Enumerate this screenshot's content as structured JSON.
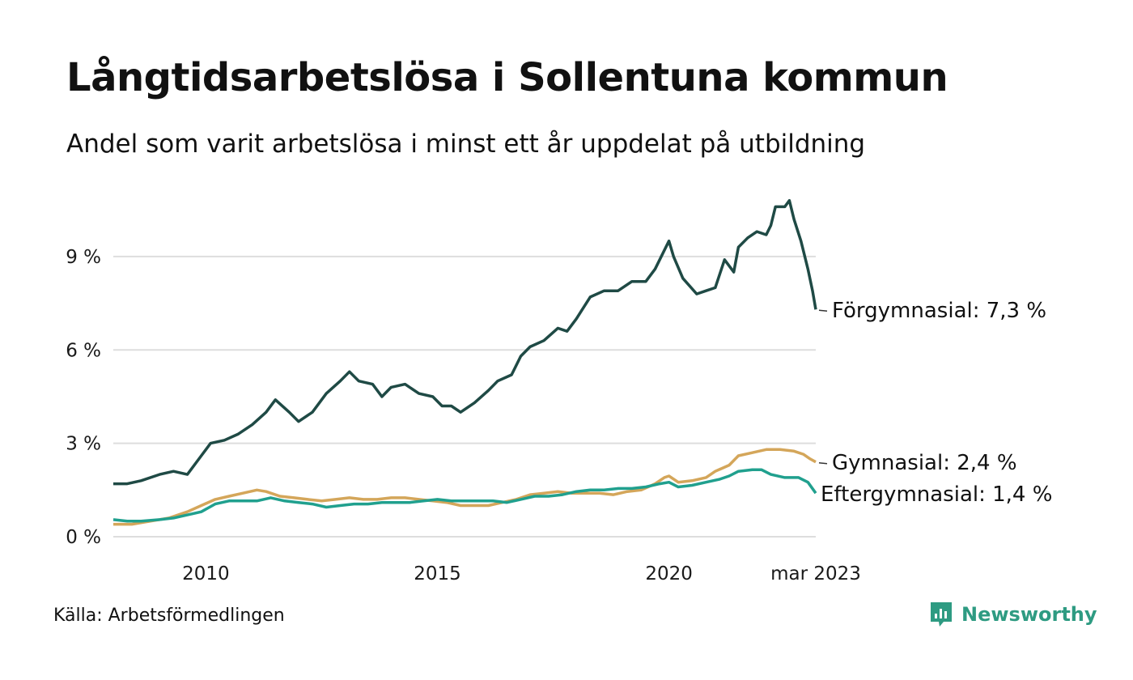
{
  "title": "Långtidsarbetslösa i Sollentuna kommun",
  "subtitle": "Andel som varit arbetslösa i minst ett år uppdelat på utbildning",
  "source": "Källa: Arbetsförmedlingen",
  "brand": {
    "name": "Newsworthy",
    "icon": "newsworthy-logo-icon",
    "color": "#2e9b82"
  },
  "chart_data": {
    "type": "line",
    "x_ticks": [
      {
        "label": "2010",
        "x": 2010.0
      },
      {
        "label": "2015",
        "x": 2015.0
      },
      {
        "label": "2020",
        "x": 2020.0
      },
      {
        "label": "mar 2023",
        "x": 2023.17
      }
    ],
    "y_ticks": [
      {
        "label": "0 %",
        "value": 0
      },
      {
        "label": "3 %",
        "value": 3
      },
      {
        "label": "6 %",
        "value": 6
      },
      {
        "label": "9 %",
        "value": 9
      }
    ],
    "xlim": [
      2008.0,
      2023.17
    ],
    "ylim": [
      0,
      11
    ],
    "grid": "horizontal",
    "series": [
      {
        "name": "Förgymnasial",
        "end_label": "Förgymnasial: 7,3 %",
        "color": "#1f4a45",
        "points": [
          [
            2008.0,
            1.7
          ],
          [
            2008.3,
            1.7
          ],
          [
            2008.6,
            1.8
          ],
          [
            2009.0,
            2.0
          ],
          [
            2009.3,
            2.1
          ],
          [
            2009.6,
            2.0
          ],
          [
            2009.9,
            2.6
          ],
          [
            2010.1,
            3.0
          ],
          [
            2010.4,
            3.1
          ],
          [
            2010.7,
            3.3
          ],
          [
            2011.0,
            3.6
          ],
          [
            2011.3,
            4.0
          ],
          [
            2011.5,
            4.4
          ],
          [
            2011.8,
            4.0
          ],
          [
            2012.0,
            3.7
          ],
          [
            2012.3,
            4.0
          ],
          [
            2012.6,
            4.6
          ],
          [
            2012.9,
            5.0
          ],
          [
            2013.1,
            5.3
          ],
          [
            2013.3,
            5.0
          ],
          [
            2013.6,
            4.9
          ],
          [
            2013.8,
            4.5
          ],
          [
            2014.0,
            4.8
          ],
          [
            2014.3,
            4.9
          ],
          [
            2014.6,
            4.6
          ],
          [
            2014.9,
            4.5
          ],
          [
            2015.1,
            4.2
          ],
          [
            2015.3,
            4.2
          ],
          [
            2015.5,
            4.0
          ],
          [
            2015.8,
            4.3
          ],
          [
            2016.1,
            4.7
          ],
          [
            2016.3,
            5.0
          ],
          [
            2016.6,
            5.2
          ],
          [
            2016.8,
            5.8
          ],
          [
            2017.0,
            6.1
          ],
          [
            2017.3,
            6.3
          ],
          [
            2017.6,
            6.7
          ],
          [
            2017.8,
            6.6
          ],
          [
            2018.0,
            7.0
          ],
          [
            2018.3,
            7.7
          ],
          [
            2018.6,
            7.9
          ],
          [
            2018.9,
            7.9
          ],
          [
            2019.2,
            8.2
          ],
          [
            2019.5,
            8.2
          ],
          [
            2019.7,
            8.6
          ],
          [
            2019.9,
            9.2
          ],
          [
            2020.0,
            9.5
          ],
          [
            2020.1,
            9.0
          ],
          [
            2020.3,
            8.3
          ],
          [
            2020.6,
            7.8
          ],
          [
            2020.8,
            7.9
          ],
          [
            2021.0,
            8.0
          ],
          [
            2021.2,
            8.9
          ],
          [
            2021.4,
            8.5
          ],
          [
            2021.5,
            9.3
          ],
          [
            2021.7,
            9.6
          ],
          [
            2021.9,
            9.8
          ],
          [
            2022.1,
            9.7
          ],
          [
            2022.2,
            10.0
          ],
          [
            2022.3,
            10.6
          ],
          [
            2022.5,
            10.6
          ],
          [
            2022.6,
            10.8
          ],
          [
            2022.7,
            10.2
          ],
          [
            2022.85,
            9.5
          ],
          [
            2023.0,
            8.6
          ],
          [
            2023.1,
            7.9
          ],
          [
            2023.17,
            7.3
          ]
        ]
      },
      {
        "name": "Gymnasial",
        "end_label": "Gymnasial: 2,4 %",
        "color": "#d4a65a",
        "points": [
          [
            2008.0,
            0.4
          ],
          [
            2008.4,
            0.4
          ],
          [
            2008.8,
            0.5
          ],
          [
            2009.2,
            0.6
          ],
          [
            2009.6,
            0.8
          ],
          [
            2009.9,
            1.0
          ],
          [
            2010.2,
            1.2
          ],
          [
            2010.5,
            1.3
          ],
          [
            2010.8,
            1.4
          ],
          [
            2011.1,
            1.5
          ],
          [
            2011.3,
            1.45
          ],
          [
            2011.6,
            1.3
          ],
          [
            2011.9,
            1.25
          ],
          [
            2012.2,
            1.2
          ],
          [
            2012.5,
            1.15
          ],
          [
            2012.8,
            1.2
          ],
          [
            2013.1,
            1.25
          ],
          [
            2013.4,
            1.2
          ],
          [
            2013.7,
            1.2
          ],
          [
            2014.0,
            1.25
          ],
          [
            2014.3,
            1.25
          ],
          [
            2014.6,
            1.2
          ],
          [
            2014.9,
            1.15
          ],
          [
            2015.2,
            1.1
          ],
          [
            2015.5,
            1.0
          ],
          [
            2015.8,
            1.0
          ],
          [
            2016.1,
            1.0
          ],
          [
            2016.4,
            1.1
          ],
          [
            2016.7,
            1.2
          ],
          [
            2017.0,
            1.35
          ],
          [
            2017.3,
            1.4
          ],
          [
            2017.6,
            1.45
          ],
          [
            2017.9,
            1.4
          ],
          [
            2018.2,
            1.4
          ],
          [
            2018.5,
            1.4
          ],
          [
            2018.8,
            1.35
          ],
          [
            2019.1,
            1.45
          ],
          [
            2019.4,
            1.5
          ],
          [
            2019.7,
            1.7
          ],
          [
            2019.9,
            1.9
          ],
          [
            2020.0,
            1.95
          ],
          [
            2020.2,
            1.75
          ],
          [
            2020.5,
            1.8
          ],
          [
            2020.8,
            1.9
          ],
          [
            2021.0,
            2.1
          ],
          [
            2021.3,
            2.3
          ],
          [
            2021.5,
            2.6
          ],
          [
            2021.8,
            2.7
          ],
          [
            2022.1,
            2.8
          ],
          [
            2022.4,
            2.8
          ],
          [
            2022.7,
            2.75
          ],
          [
            2022.9,
            2.65
          ],
          [
            2023.05,
            2.5
          ],
          [
            2023.17,
            2.4
          ]
        ]
      },
      {
        "name": "Eftergymnasial",
        "end_label": "Eftergymnasial: 1,4 %",
        "color": "#20a08e",
        "points": [
          [
            2008.0,
            0.55
          ],
          [
            2008.3,
            0.5
          ],
          [
            2008.6,
            0.5
          ],
          [
            2009.0,
            0.55
          ],
          [
            2009.3,
            0.6
          ],
          [
            2009.6,
            0.7
          ],
          [
            2009.9,
            0.8
          ],
          [
            2010.2,
            1.05
          ],
          [
            2010.5,
            1.15
          ],
          [
            2010.8,
            1.15
          ],
          [
            2011.1,
            1.15
          ],
          [
            2011.4,
            1.25
          ],
          [
            2011.7,
            1.15
          ],
          [
            2012.0,
            1.1
          ],
          [
            2012.3,
            1.05
          ],
          [
            2012.6,
            0.95
          ],
          [
            2012.9,
            1.0
          ],
          [
            2013.2,
            1.05
          ],
          [
            2013.5,
            1.05
          ],
          [
            2013.8,
            1.1
          ],
          [
            2014.1,
            1.1
          ],
          [
            2014.4,
            1.1
          ],
          [
            2014.7,
            1.15
          ],
          [
            2015.0,
            1.2
          ],
          [
            2015.3,
            1.15
          ],
          [
            2015.6,
            1.15
          ],
          [
            2015.9,
            1.15
          ],
          [
            2016.2,
            1.15
          ],
          [
            2016.5,
            1.1
          ],
          [
            2016.8,
            1.2
          ],
          [
            2017.1,
            1.3
          ],
          [
            2017.4,
            1.3
          ],
          [
            2017.7,
            1.35
          ],
          [
            2018.0,
            1.45
          ],
          [
            2018.3,
            1.5
          ],
          [
            2018.6,
            1.5
          ],
          [
            2018.9,
            1.55
          ],
          [
            2019.2,
            1.55
          ],
          [
            2019.5,
            1.6
          ],
          [
            2019.8,
            1.7
          ],
          [
            2020.0,
            1.75
          ],
          [
            2020.2,
            1.6
          ],
          [
            2020.5,
            1.65
          ],
          [
            2020.8,
            1.75
          ],
          [
            2021.1,
            1.85
          ],
          [
            2021.3,
            1.95
          ],
          [
            2021.5,
            2.1
          ],
          [
            2021.8,
            2.15
          ],
          [
            2022.0,
            2.15
          ],
          [
            2022.2,
            2.0
          ],
          [
            2022.5,
            1.9
          ],
          [
            2022.8,
            1.9
          ],
          [
            2023.0,
            1.75
          ],
          [
            2023.17,
            1.4
          ]
        ]
      }
    ]
  }
}
